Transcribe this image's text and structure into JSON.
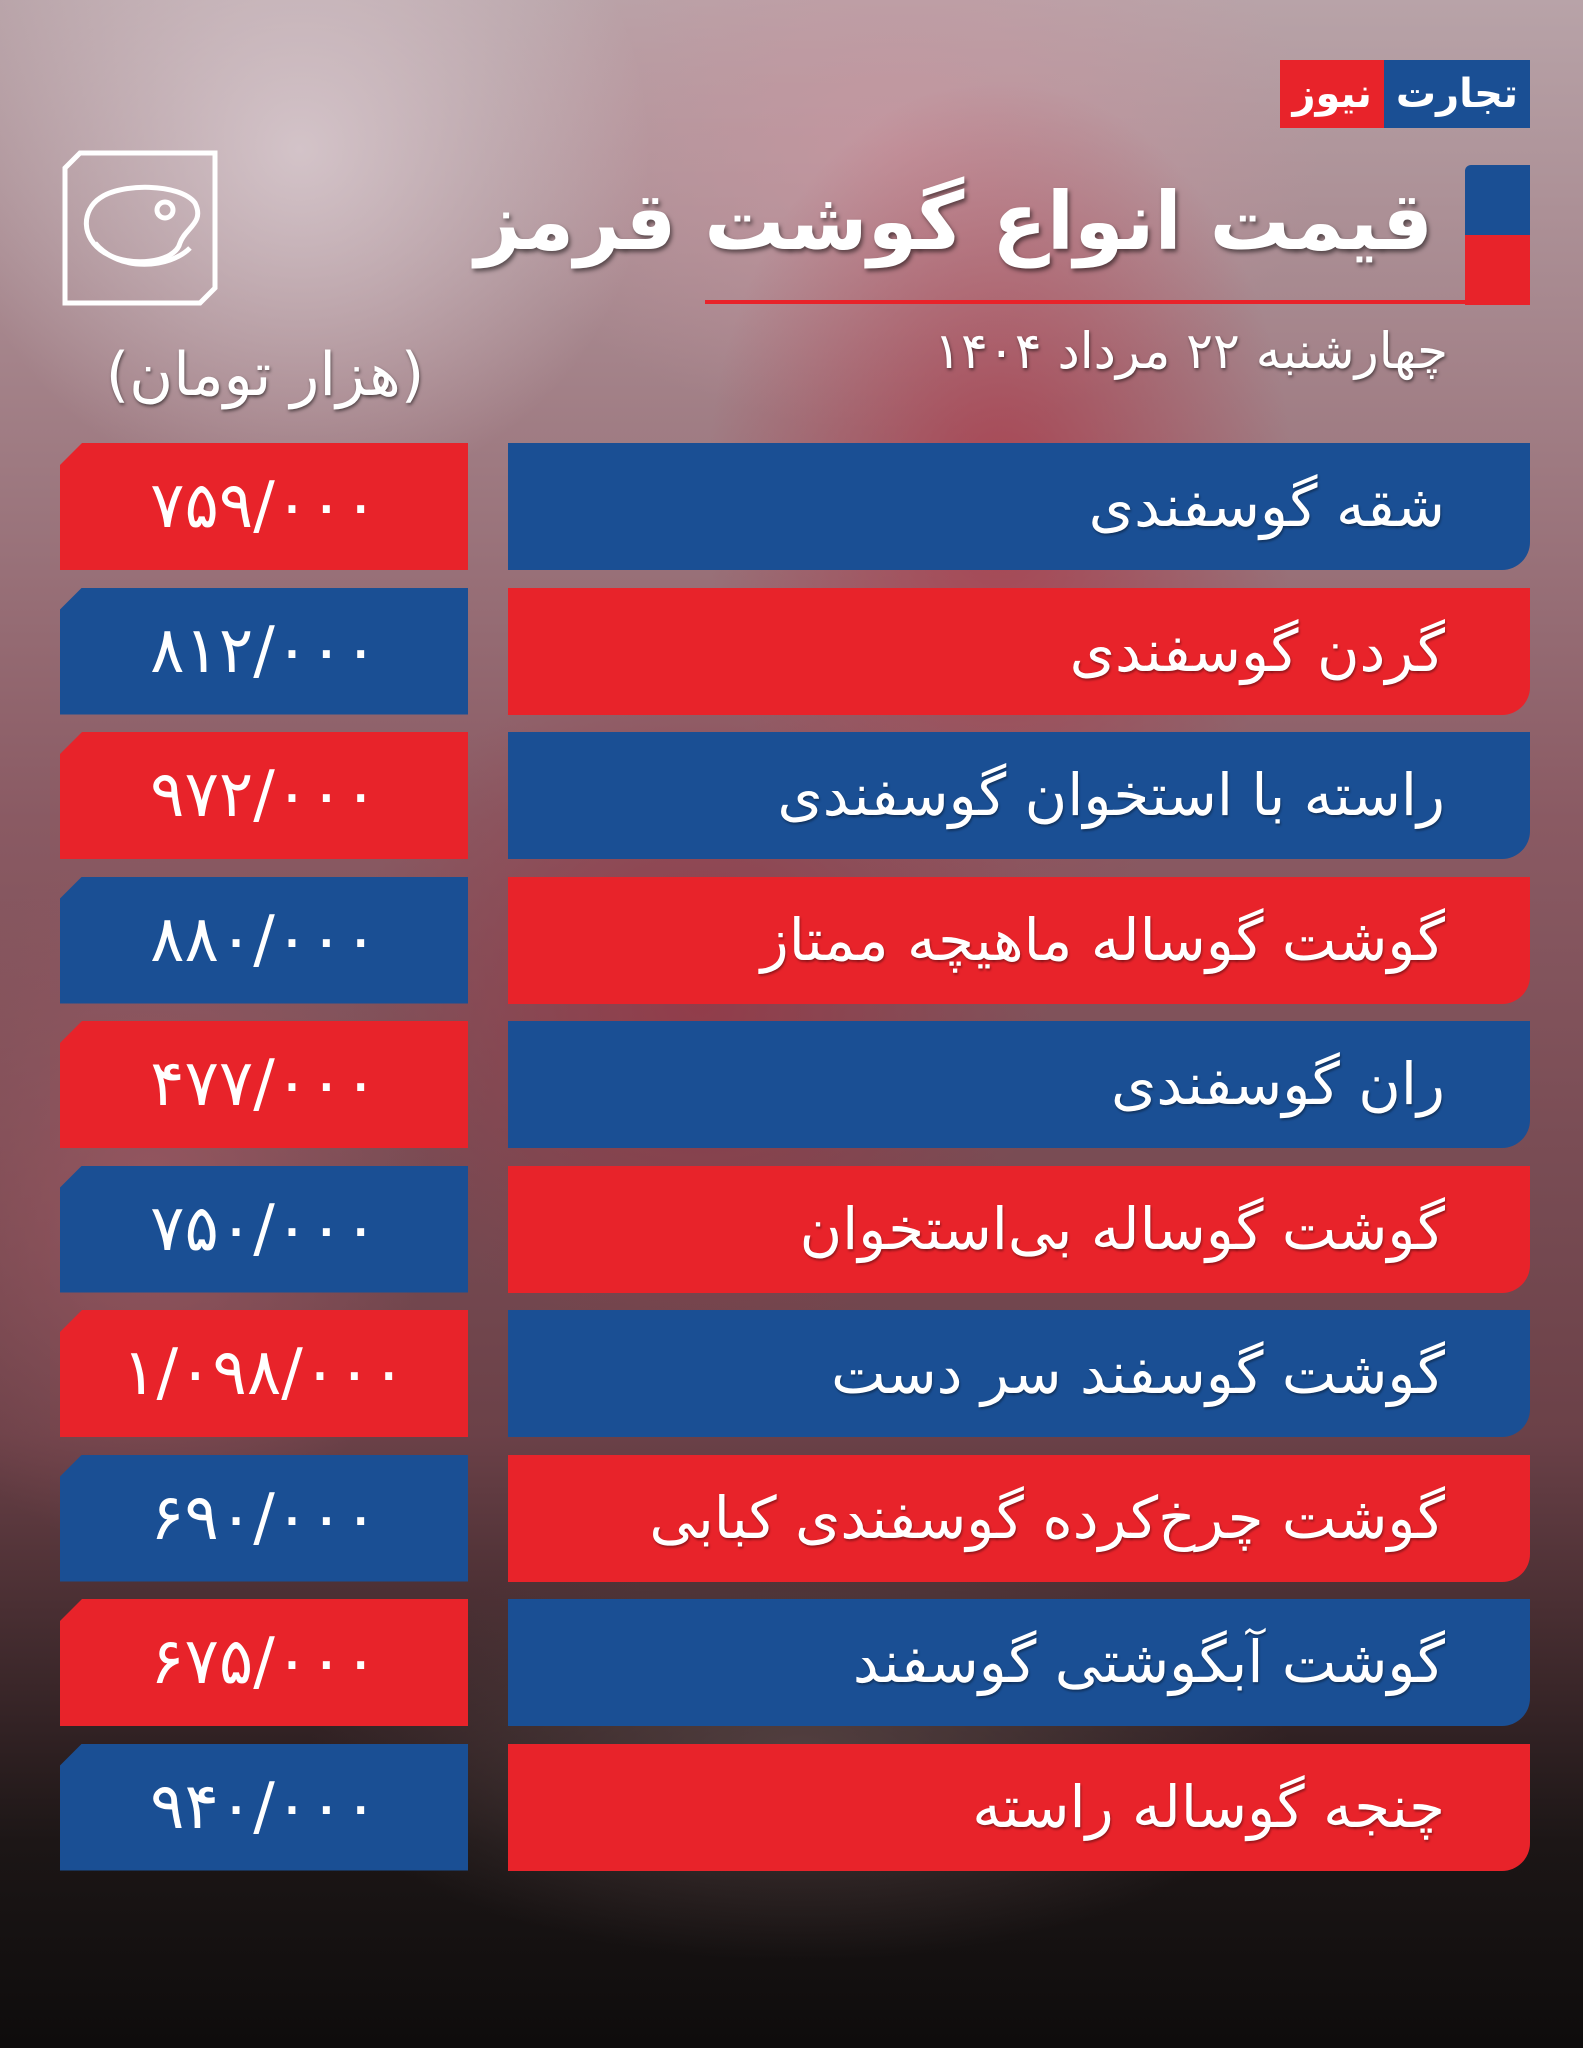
{
  "brand": {
    "logo_part1": "تجارت",
    "logo_part2": "نیوز"
  },
  "header": {
    "title": "قیمت انواع گوشت قرمز",
    "date": "چهارشنبه ۲۲ مرداد ۱۴۰۴",
    "unit": "(هزار تومان)",
    "icon": "meat-steak-icon"
  },
  "colors": {
    "blue": "#1a4f94",
    "red": "#e8232a"
  },
  "items": [
    {
      "name": "شقه گوسفندی",
      "price": "۷۵۹/۰۰۰"
    },
    {
      "name": "گردن گوسفندی",
      "price": "۸۱۲/۰۰۰"
    },
    {
      "name": "راسته با استخوان گوسفندی",
      "price": "۹۷۲/۰۰۰"
    },
    {
      "name": "گوشت گوساله ماهیچه ممتاز",
      "price": "۸۸۰/۰۰۰"
    },
    {
      "name": "ران گوسفندی",
      "price": "۴۷۷/۰۰۰"
    },
    {
      "name": "گوشت گوساله بی‌استخوان",
      "price": "۷۵۰/۰۰۰"
    },
    {
      "name": "گوشت گوسفند سر دست",
      "price": "۱/۰۹۸/۰۰۰"
    },
    {
      "name": "گوشت چرخ‌کرده گوسفندی کبابی",
      "price": "۶۹۰/۰۰۰"
    },
    {
      "name": "گوشت آبگوشتی گوسفند",
      "price": "۶۷۵/۰۰۰"
    },
    {
      "name": "چنجه گوساله راسته",
      "price": "۹۴۰/۰۰۰"
    }
  ]
}
